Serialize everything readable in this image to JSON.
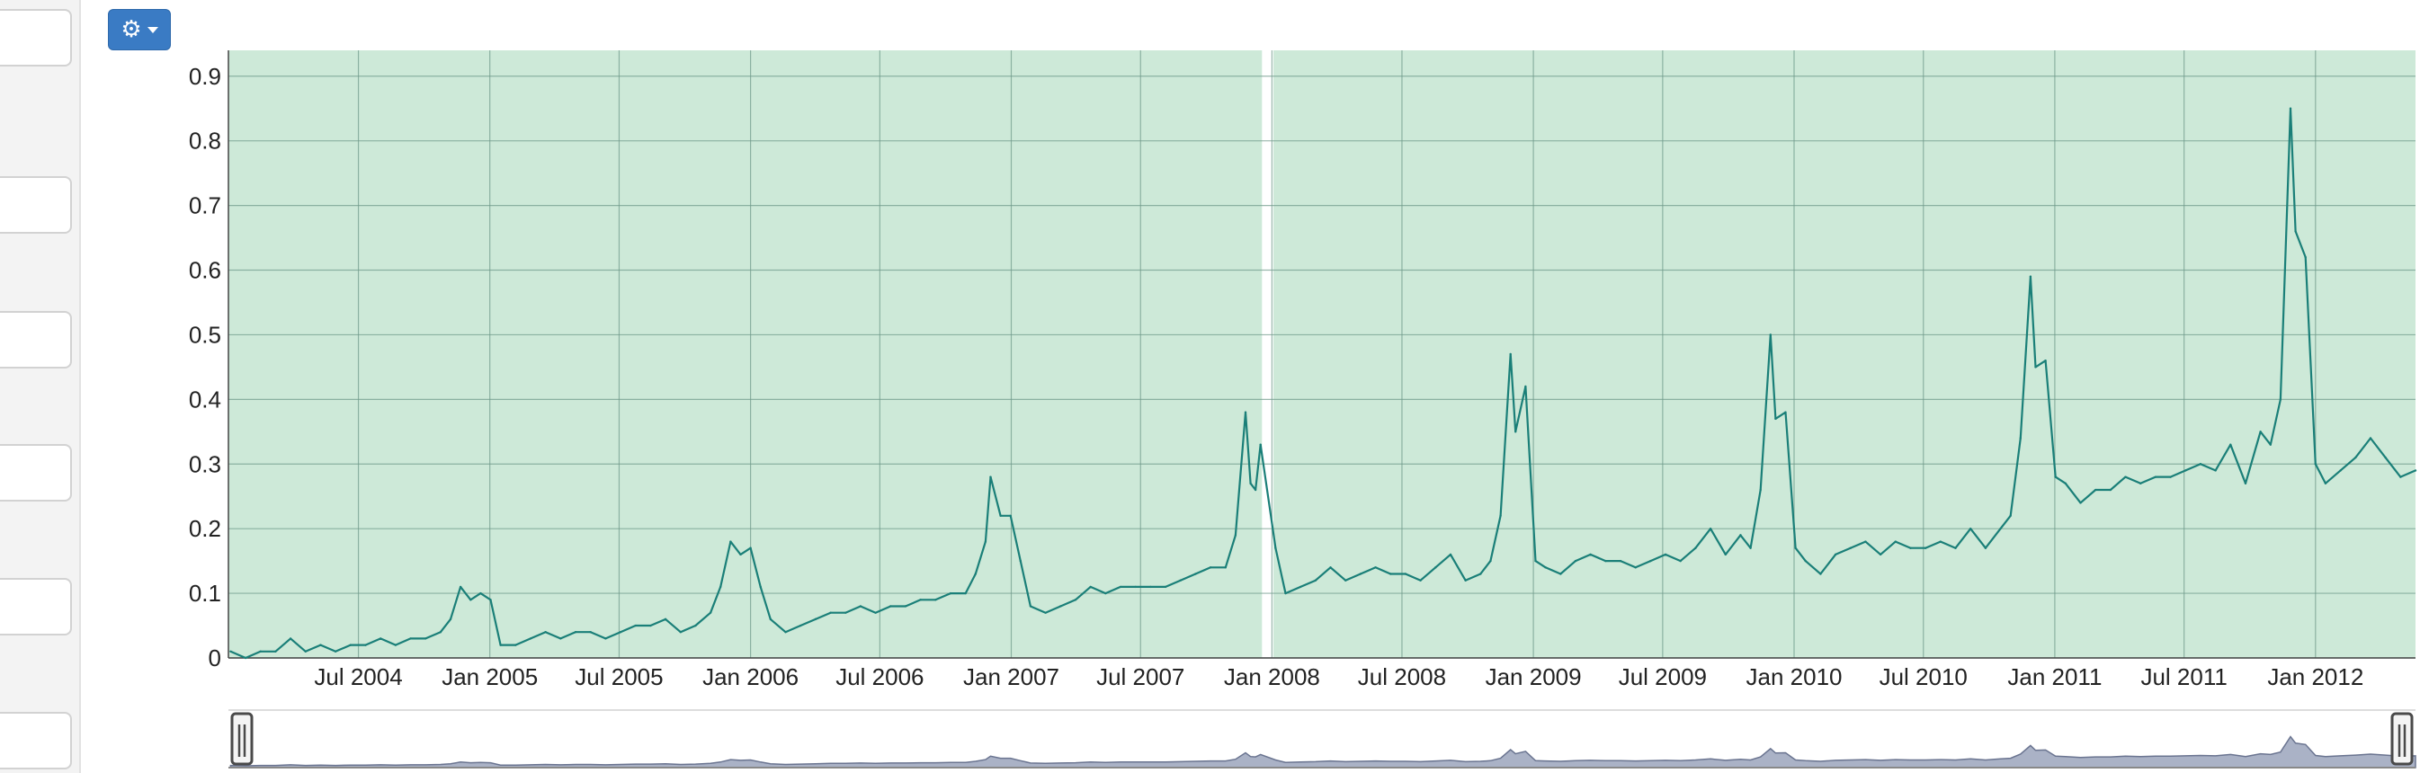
{
  "toolbar": {
    "settings_icon": "gear-icon"
  },
  "colors": {
    "plot_background": "#cde9d8",
    "grid": "#6f9a8a",
    "line": "#1a7f78",
    "divider": "#ffffff",
    "navigator_fill": "#aab2c6",
    "navigator_line": "#6a7490",
    "navigator_handle": "#4a4a4a"
  },
  "chart_data": {
    "type": "line",
    "title": "",
    "xlabel": "",
    "ylabel": "",
    "ylim": [
      0,
      0.94
    ],
    "yticks": [
      0,
      0.1,
      0.2,
      0.3,
      0.4,
      0.5,
      0.6,
      0.7,
      0.8,
      0.9
    ],
    "ytick_labels": [
      "0",
      "0.1",
      "0.2",
      "0.3",
      "0.4",
      "0.5",
      "0.6",
      "0.7",
      "0.8",
      "0.9"
    ],
    "xlim": [
      "2004-01-01",
      "2012-05-20"
    ],
    "xticks": [
      "2004-07-01",
      "2005-01-01",
      "2005-07-01",
      "2006-01-01",
      "2006-07-01",
      "2007-01-01",
      "2007-07-01",
      "2008-01-01",
      "2008-07-01",
      "2009-01-01",
      "2009-07-01",
      "2010-01-01",
      "2010-07-01",
      "2011-01-01",
      "2011-07-01",
      "2012-01-01"
    ],
    "xtick_labels": [
      "Jul 2004",
      "Jan 2005",
      "Jul 2005",
      "Jan 2006",
      "Jul 2006",
      "Jan 2007",
      "Jul 2007",
      "Jan 2008",
      "Jul 2008",
      "Jan 2009",
      "Jul 2009",
      "Jan 2010",
      "Jul 2010",
      "Jan 2011",
      "Jul 2011",
      "Jan 2012"
    ],
    "grid": true,
    "legend": "none",
    "shaded_periods": [
      [
        "2004-01-01",
        "2007-12-18"
      ],
      [
        "2008-01-03",
        "2012-05-20"
      ]
    ],
    "series": [
      {
        "points": [
          [
            "2004-01-04",
            0.01
          ],
          [
            "2004-01-25",
            0.0
          ],
          [
            "2004-02-15",
            0.01
          ],
          [
            "2004-03-07",
            0.01
          ],
          [
            "2004-03-28",
            0.03
          ],
          [
            "2004-04-18",
            0.01
          ],
          [
            "2004-05-09",
            0.02
          ],
          [
            "2004-05-30",
            0.01
          ],
          [
            "2004-06-20",
            0.02
          ],
          [
            "2004-07-11",
            0.02
          ],
          [
            "2004-08-01",
            0.03
          ],
          [
            "2004-08-22",
            0.02
          ],
          [
            "2004-09-12",
            0.03
          ],
          [
            "2004-10-03",
            0.03
          ],
          [
            "2004-10-24",
            0.04
          ],
          [
            "2004-11-07",
            0.06
          ],
          [
            "2004-11-21",
            0.11
          ],
          [
            "2004-12-05",
            0.09
          ],
          [
            "2004-12-19",
            0.1
          ],
          [
            "2005-01-02",
            0.09
          ],
          [
            "2005-01-16",
            0.02
          ],
          [
            "2005-02-06",
            0.02
          ],
          [
            "2005-02-27",
            0.03
          ],
          [
            "2005-03-20",
            0.04
          ],
          [
            "2005-04-10",
            0.03
          ],
          [
            "2005-05-01",
            0.04
          ],
          [
            "2005-05-22",
            0.04
          ],
          [
            "2005-06-12",
            0.03
          ],
          [
            "2005-07-03",
            0.04
          ],
          [
            "2005-07-24",
            0.05
          ],
          [
            "2005-08-14",
            0.05
          ],
          [
            "2005-09-04",
            0.06
          ],
          [
            "2005-09-25",
            0.04
          ],
          [
            "2005-10-16",
            0.05
          ],
          [
            "2005-11-06",
            0.07
          ],
          [
            "2005-11-20",
            0.11
          ],
          [
            "2005-12-04",
            0.18
          ],
          [
            "2005-12-18",
            0.16
          ],
          [
            "2006-01-01",
            0.17
          ],
          [
            "2006-01-15",
            0.11
          ],
          [
            "2006-01-29",
            0.06
          ],
          [
            "2006-02-19",
            0.04
          ],
          [
            "2006-03-12",
            0.05
          ],
          [
            "2006-04-02",
            0.06
          ],
          [
            "2006-04-23",
            0.07
          ],
          [
            "2006-05-14",
            0.07
          ],
          [
            "2006-06-04",
            0.08
          ],
          [
            "2006-06-25",
            0.07
          ],
          [
            "2006-07-16",
            0.08
          ],
          [
            "2006-08-06",
            0.08
          ],
          [
            "2006-08-27",
            0.09
          ],
          [
            "2006-09-17",
            0.09
          ],
          [
            "2006-10-08",
            0.1
          ],
          [
            "2006-10-29",
            0.1
          ],
          [
            "2006-11-12",
            0.13
          ],
          [
            "2006-11-26",
            0.18
          ],
          [
            "2006-12-03",
            0.28
          ],
          [
            "2006-12-17",
            0.22
          ],
          [
            "2006-12-31",
            0.22
          ],
          [
            "2007-01-14",
            0.15
          ],
          [
            "2007-01-28",
            0.08
          ],
          [
            "2007-02-18",
            0.07
          ],
          [
            "2007-03-11",
            0.08
          ],
          [
            "2007-04-01",
            0.09
          ],
          [
            "2007-04-22",
            0.11
          ],
          [
            "2007-05-13",
            0.1
          ],
          [
            "2007-06-03",
            0.11
          ],
          [
            "2007-06-24",
            0.11
          ],
          [
            "2007-07-15",
            0.11
          ],
          [
            "2007-08-05",
            0.11
          ],
          [
            "2007-08-26",
            0.12
          ],
          [
            "2007-09-16",
            0.13
          ],
          [
            "2007-10-07",
            0.14
          ],
          [
            "2007-10-28",
            0.14
          ],
          [
            "2007-11-11",
            0.19
          ],
          [
            "2007-11-25",
            0.38
          ],
          [
            "2007-12-02",
            0.27
          ],
          [
            "2007-12-09",
            0.26
          ],
          [
            "2007-12-16",
            0.33
          ],
          [
            "2008-01-06",
            0.17
          ],
          [
            "2008-01-20",
            0.1
          ],
          [
            "2008-02-10",
            0.11
          ],
          [
            "2008-03-02",
            0.12
          ],
          [
            "2008-03-23",
            0.14
          ],
          [
            "2008-04-13",
            0.12
          ],
          [
            "2008-05-04",
            0.13
          ],
          [
            "2008-05-25",
            0.14
          ],
          [
            "2008-06-15",
            0.13
          ],
          [
            "2008-07-06",
            0.13
          ],
          [
            "2008-07-27",
            0.12
          ],
          [
            "2008-08-17",
            0.14
          ],
          [
            "2008-09-07",
            0.16
          ],
          [
            "2008-09-28",
            0.12
          ],
          [
            "2008-10-19",
            0.13
          ],
          [
            "2008-11-02",
            0.15
          ],
          [
            "2008-11-16",
            0.22
          ],
          [
            "2008-11-30",
            0.47
          ],
          [
            "2008-12-07",
            0.35
          ],
          [
            "2008-12-21",
            0.42
          ],
          [
            "2009-01-04",
            0.15
          ],
          [
            "2009-01-18",
            0.14
          ],
          [
            "2009-02-08",
            0.13
          ],
          [
            "2009-03-01",
            0.15
          ],
          [
            "2009-03-22",
            0.16
          ],
          [
            "2009-04-12",
            0.15
          ],
          [
            "2009-05-03",
            0.15
          ],
          [
            "2009-05-24",
            0.14
          ],
          [
            "2009-06-14",
            0.15
          ],
          [
            "2009-07-05",
            0.16
          ],
          [
            "2009-07-26",
            0.15
          ],
          [
            "2009-08-16",
            0.17
          ],
          [
            "2009-09-06",
            0.2
          ],
          [
            "2009-09-27",
            0.16
          ],
          [
            "2009-10-18",
            0.19
          ],
          [
            "2009-11-01",
            0.17
          ],
          [
            "2009-11-15",
            0.26
          ],
          [
            "2009-11-29",
            0.5
          ],
          [
            "2009-12-06",
            0.37
          ],
          [
            "2009-12-20",
            0.38
          ],
          [
            "2010-01-03",
            0.17
          ],
          [
            "2010-01-17",
            0.15
          ],
          [
            "2010-02-07",
            0.13
          ],
          [
            "2010-02-28",
            0.16
          ],
          [
            "2010-03-21",
            0.17
          ],
          [
            "2010-04-11",
            0.18
          ],
          [
            "2010-05-02",
            0.16
          ],
          [
            "2010-05-23",
            0.18
          ],
          [
            "2010-06-13",
            0.17
          ],
          [
            "2010-07-04",
            0.17
          ],
          [
            "2010-07-25",
            0.18
          ],
          [
            "2010-08-15",
            0.17
          ],
          [
            "2010-09-05",
            0.2
          ],
          [
            "2010-09-26",
            0.17
          ],
          [
            "2010-10-17",
            0.2
          ],
          [
            "2010-10-31",
            0.22
          ],
          [
            "2010-11-14",
            0.34
          ],
          [
            "2010-11-28",
            0.59
          ],
          [
            "2010-12-05",
            0.45
          ],
          [
            "2010-12-19",
            0.46
          ],
          [
            "2011-01-02",
            0.28
          ],
          [
            "2011-01-16",
            0.27
          ],
          [
            "2011-02-06",
            0.24
          ],
          [
            "2011-02-27",
            0.26
          ],
          [
            "2011-03-20",
            0.26
          ],
          [
            "2011-04-10",
            0.28
          ],
          [
            "2011-05-01",
            0.27
          ],
          [
            "2011-05-22",
            0.28
          ],
          [
            "2011-06-12",
            0.28
          ],
          [
            "2011-07-03",
            0.29
          ],
          [
            "2011-07-24",
            0.3
          ],
          [
            "2011-08-14",
            0.29
          ],
          [
            "2011-09-04",
            0.33
          ],
          [
            "2011-09-25",
            0.27
          ],
          [
            "2011-10-16",
            0.35
          ],
          [
            "2011-10-30",
            0.33
          ],
          [
            "2011-11-13",
            0.4
          ],
          [
            "2011-11-27",
            0.85
          ],
          [
            "2011-12-04",
            0.66
          ],
          [
            "2011-12-18",
            0.62
          ],
          [
            "2012-01-01",
            0.3
          ],
          [
            "2012-01-15",
            0.27
          ],
          [
            "2012-02-05",
            0.29
          ],
          [
            "2012-02-26",
            0.31
          ],
          [
            "2012-03-18",
            0.34
          ],
          [
            "2012-04-08",
            0.31
          ],
          [
            "2012-04-29",
            0.28
          ],
          [
            "2012-05-20",
            0.29
          ]
        ]
      }
    ]
  }
}
